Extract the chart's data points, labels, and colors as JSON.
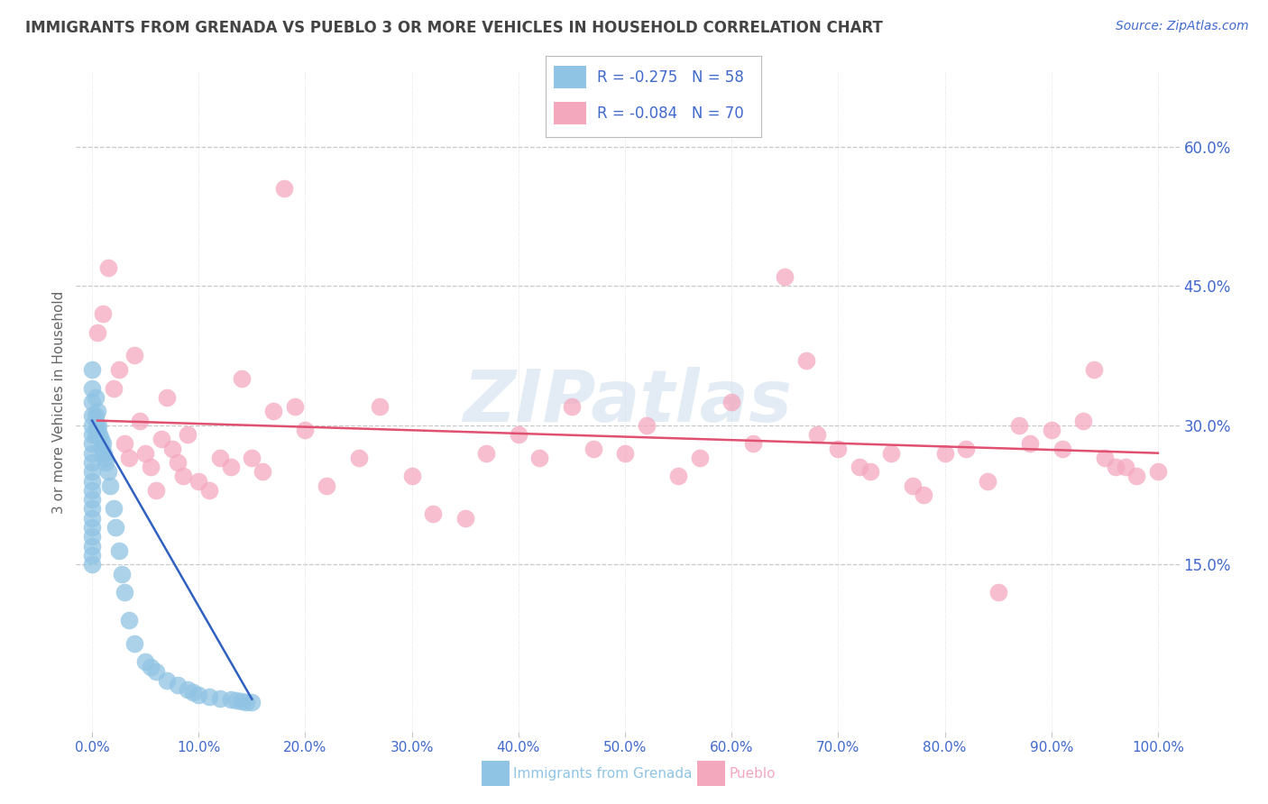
{
  "title": "IMMIGRANTS FROM GRENADA VS PUEBLO 3 OR MORE VEHICLES IN HOUSEHOLD CORRELATION CHART",
  "source": "Source: ZipAtlas.com",
  "xlabel_bottom": "Immigrants from Grenada",
  "xlabel_pueblo": "Pueblo",
  "ylabel": "3 or more Vehicles in Household",
  "x_ticks": [
    0.0,
    10.0,
    20.0,
    30.0,
    40.0,
    50.0,
    60.0,
    70.0,
    80.0,
    90.0,
    100.0
  ],
  "y_ticks_right": [
    15.0,
    30.0,
    45.0,
    60.0
  ],
  "xlim": [
    -1.5,
    102.0
  ],
  "ylim": [
    -3.0,
    68.0
  ],
  "blue_color": "#90c4e4",
  "pink_color": "#f4a8be",
  "trend_blue": "#3060c0",
  "trend_pink": "#e05070",
  "legend_blue_R": "-0.275",
  "legend_blue_N": "58",
  "legend_pink_R": "-0.084",
  "legend_pink_N": "70",
  "background_color": "#ffffff",
  "grid_color": "#c8c8c8",
  "axis_color": "#4169cd",
  "title_color": "#444444",
  "watermark": "ZIPatlas",
  "blue_dots_x": [
    0.0,
    0.0,
    0.0,
    0.0,
    0.0,
    0.0,
    0.0,
    0.0,
    0.0,
    0.0,
    0.0,
    0.0,
    0.0,
    0.0,
    0.0,
    0.0,
    0.0,
    0.0,
    0.0,
    0.0,
    0.3,
    0.3,
    0.3,
    0.4,
    0.5,
    0.5,
    0.6,
    0.7,
    0.8,
    0.9,
    1.0,
    1.1,
    1.2,
    1.3,
    1.5,
    1.7,
    2.0,
    2.2,
    2.5,
    2.8,
    3.0,
    3.5,
    4.0,
    5.0,
    5.5,
    6.0,
    7.0,
    8.0,
    9.0,
    9.5,
    10.0,
    11.0,
    12.0,
    13.0,
    13.5,
    14.0,
    14.5,
    15.0
  ],
  "blue_dots_y": [
    36.0,
    34.0,
    32.5,
    31.0,
    30.0,
    29.0,
    28.0,
    27.0,
    26.0,
    25.0,
    24.0,
    23.0,
    22.0,
    21.0,
    20.0,
    19.0,
    18.0,
    17.0,
    16.0,
    15.0,
    33.0,
    31.0,
    29.0,
    30.0,
    31.5,
    29.5,
    30.0,
    29.0,
    28.5,
    27.5,
    28.0,
    27.0,
    26.5,
    26.0,
    25.0,
    23.5,
    21.0,
    19.0,
    16.5,
    14.0,
    12.0,
    9.0,
    6.5,
    4.5,
    4.0,
    3.5,
    2.5,
    2.0,
    1.5,
    1.2,
    1.0,
    0.8,
    0.6,
    0.5,
    0.4,
    0.3,
    0.2,
    0.2
  ],
  "pink_dots_x": [
    0.5,
    1.0,
    1.5,
    2.0,
    2.5,
    3.0,
    3.5,
    4.0,
    4.5,
    5.0,
    5.5,
    6.0,
    6.5,
    7.0,
    7.5,
    8.0,
    8.5,
    9.0,
    10.0,
    11.0,
    12.0,
    13.0,
    14.0,
    15.0,
    16.0,
    17.0,
    18.0,
    19.0,
    20.0,
    22.0,
    25.0,
    27.0,
    30.0,
    32.0,
    35.0,
    37.0,
    40.0,
    42.0,
    45.0,
    47.0,
    50.0,
    52.0,
    55.0,
    57.0,
    60.0,
    62.0,
    65.0,
    67.0,
    68.0,
    70.0,
    72.0,
    73.0,
    75.0,
    77.0,
    78.0,
    80.0,
    82.0,
    84.0,
    85.0,
    87.0,
    88.0,
    90.0,
    91.0,
    93.0,
    94.0,
    95.0,
    96.0,
    97.0,
    98.0,
    100.0
  ],
  "pink_dots_y": [
    40.0,
    42.0,
    47.0,
    34.0,
    36.0,
    28.0,
    26.5,
    37.5,
    30.5,
    27.0,
    25.5,
    23.0,
    28.5,
    33.0,
    27.5,
    26.0,
    24.5,
    29.0,
    24.0,
    23.0,
    26.5,
    25.5,
    35.0,
    26.5,
    25.0,
    31.5,
    55.5,
    32.0,
    29.5,
    23.5,
    26.5,
    32.0,
    24.5,
    20.5,
    20.0,
    27.0,
    29.0,
    26.5,
    32.0,
    27.5,
    27.0,
    30.0,
    24.5,
    26.5,
    32.5,
    28.0,
    46.0,
    37.0,
    29.0,
    27.5,
    25.5,
    25.0,
    27.0,
    23.5,
    22.5,
    27.0,
    27.5,
    24.0,
    12.0,
    30.0,
    28.0,
    29.5,
    27.5,
    30.5,
    36.0,
    26.5,
    25.5,
    25.5,
    24.5,
    25.0
  ],
  "blue_trend_x": [
    0.0,
    15.0
  ],
  "blue_trend_y": [
    30.5,
    0.5
  ],
  "pink_trend_x": [
    0.5,
    100.0
  ],
  "pink_trend_y": [
    30.5,
    27.0
  ]
}
